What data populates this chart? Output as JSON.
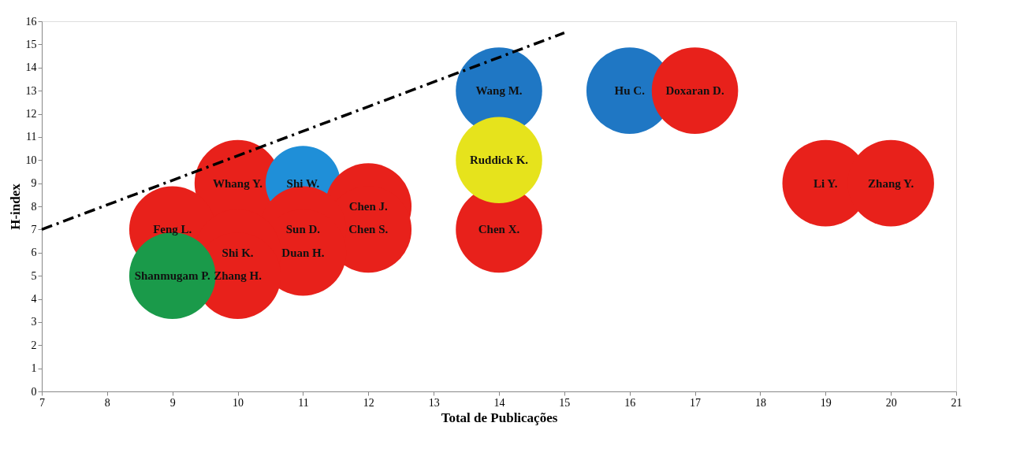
{
  "chart_data": {
    "type": "bubble",
    "xlabel": "Total de Publicações",
    "ylabel": "H-index",
    "xlim": [
      7,
      21
    ],
    "xticks": [
      7,
      8,
      9,
      10,
      11,
      12,
      13,
      14,
      15,
      16,
      17,
      18,
      19,
      20,
      21
    ],
    "ylim": [
      0,
      16
    ],
    "yticks": [
      0,
      1,
      2,
      3,
      4,
      5,
      6,
      7,
      8,
      9,
      10,
      11,
      12,
      13,
      14,
      15,
      16
    ],
    "grid": false,
    "x": [
      14,
      16,
      17,
      19,
      20,
      10,
      11,
      12,
      12,
      11,
      11,
      9,
      10,
      10,
      14,
      14,
      9
    ],
    "values": [
      13,
      13,
      13,
      9,
      9,
      9,
      9,
      8,
      7,
      7,
      6,
      7,
      6,
      5,
      7,
      10,
      5
    ],
    "sizes": [
      1,
      1,
      1,
      1,
      1,
      1,
      0.75,
      1,
      1,
      1,
      1,
      1,
      1,
      1,
      1,
      1,
      1
    ],
    "colors": [
      "#1f77c4",
      "#1f77c4",
      "#e8211b",
      "#e8211b",
      "#e8211b",
      "#e8211b",
      "#1f8fd8",
      "#e8211b",
      "#e8211b",
      "#e8211b",
      "#e8211b",
      "#e8211b",
      "#e8211b",
      "#e8211b",
      "#e8211b",
      "#e6e31c",
      "#1a9a4a"
    ],
    "series": [
      {
        "type": "line",
        "x": [
          7,
          15
        ],
        "values": [
          7,
          15.5
        ],
        "color": "#000000",
        "line_style": "dashed"
      }
    ],
    "annotations": [
      {
        "text": "Wang M.",
        "x": 14,
        "y": 13
      },
      {
        "text": "Hu C.",
        "x": 16,
        "y": 13
      },
      {
        "text": "Doxaran D.",
        "x": 17,
        "y": 13
      },
      {
        "text": "Li Y.",
        "x": 19,
        "y": 9
      },
      {
        "text": "Zhang Y.",
        "x": 20,
        "y": 9
      },
      {
        "text": "Whang Y.",
        "x": 10,
        "y": 9
      },
      {
        "text": "Shi W.",
        "x": 11,
        "y": 9
      },
      {
        "text": "Chen J.",
        "x": 12,
        "y": 8
      },
      {
        "text": "Chen S.",
        "x": 12,
        "y": 7
      },
      {
        "text": "Sun D.",
        "x": 11,
        "y": 7
      },
      {
        "text": "Duan H.",
        "x": 11,
        "y": 6
      },
      {
        "text": "Feng L.",
        "x": 9,
        "y": 7
      },
      {
        "text": "Shi K.",
        "x": 10,
        "y": 6
      },
      {
        "text": "Zhang H.",
        "x": 10,
        "y": 5
      },
      {
        "text": "Chen X.",
        "x": 14,
        "y": 7
      },
      {
        "text": "Ruddick K.",
        "x": 14,
        "y": 10
      },
      {
        "text": "Shanmugam P.",
        "x": 9,
        "y": 5
      }
    ]
  }
}
